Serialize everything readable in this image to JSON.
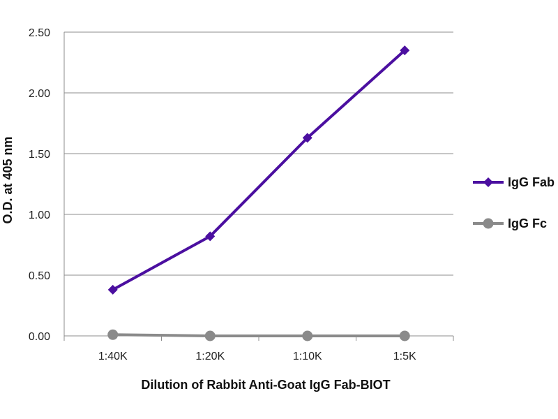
{
  "chart_data": {
    "type": "line",
    "xlabel": "Dilution of Rabbit Anti-Goat IgG Fab-BIOT",
    "ylabel": "O.D. at 405 nm",
    "categories": [
      "1:40K",
      "1:20K",
      "1:10K",
      "1:5K"
    ],
    "ylim": [
      0,
      2.5
    ],
    "yticks": [
      0,
      0.5,
      1.0,
      1.5,
      2.0,
      2.5
    ],
    "ytick_labels": [
      "0.00",
      "0.50",
      "1.00",
      "1.50",
      "2.00",
      "2.50"
    ],
    "grid": true,
    "legend_position": "right",
    "series": [
      {
        "name": "IgG Fab",
        "values": [
          0.38,
          0.82,
          1.63,
          2.35
        ],
        "color": "#4B0FA0",
        "marker": "diamond"
      },
      {
        "name": "IgG Fc",
        "values": [
          0.01,
          0.0,
          0.0,
          0.0
        ],
        "color": "#8A8A8A",
        "marker": "circle"
      }
    ]
  }
}
